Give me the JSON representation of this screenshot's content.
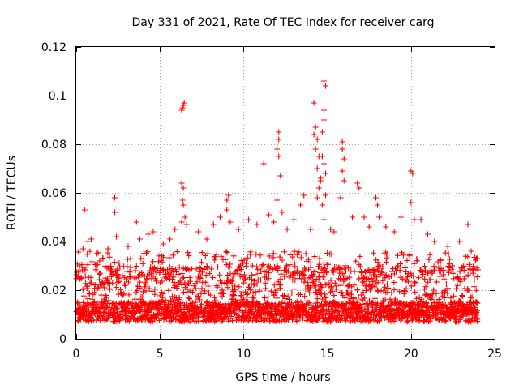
{
  "chart_data": {
    "type": "scatter",
    "title": "Day 331 of 2021, Rate Of TEC Index for receiver carg",
    "xlabel": "GPS time / hours",
    "ylabel": "ROTI / TECUs",
    "xlim": [
      0,
      25
    ],
    "ylim": [
      0,
      0.12
    ],
    "xticks": [
      0,
      5,
      10,
      15,
      20,
      25
    ],
    "yticks": [
      0,
      0.02,
      0.04,
      0.06,
      0.08,
      0.1,
      0.12
    ],
    "xtick_labels": [
      "0",
      "5",
      "10",
      "15",
      "20",
      "25"
    ],
    "ytick_labels": [
      "0",
      "0.02",
      "0.04",
      "0.06",
      "0.08",
      "0.1",
      "0.12"
    ],
    "grid": true,
    "marker": "plus",
    "color": "#ff0000",
    "data_range": [
      0,
      24
    ],
    "baseline": {
      "min": 0.004,
      "typical": 0.012,
      "max": 0.03
    },
    "series": [
      {
        "name": "ROTI",
        "points": [
          [
            0.2,
            0.03
          ],
          [
            0.4,
            0.037
          ],
          [
            0.5,
            0.053
          ],
          [
            0.7,
            0.04
          ],
          [
            0.9,
            0.041
          ],
          [
            1.2,
            0.035
          ],
          [
            1.6,
            0.033
          ],
          [
            1.9,
            0.037
          ],
          [
            2.3,
            0.058
          ],
          [
            2.3,
            0.052
          ],
          [
            2.4,
            0.042
          ],
          [
            3.1,
            0.038
          ],
          [
            3.6,
            0.048
          ],
          [
            3.8,
            0.041
          ],
          [
            4.3,
            0.043
          ],
          [
            4.6,
            0.044
          ],
          [
            5.2,
            0.039
          ],
          [
            5.6,
            0.041
          ],
          [
            5.9,
            0.045
          ],
          [
            6.3,
            0.094
          ],
          [
            6.35,
            0.095
          ],
          [
            6.4,
            0.096
          ],
          [
            6.45,
            0.097
          ],
          [
            6.3,
            0.064
          ],
          [
            6.4,
            0.062
          ],
          [
            6.35,
            0.057
          ],
          [
            6.4,
            0.055
          ],
          [
            6.3,
            0.048
          ],
          [
            6.5,
            0.05
          ],
          [
            6.6,
            0.047
          ],
          [
            7.3,
            0.044
          ],
          [
            7.8,
            0.041
          ],
          [
            8.2,
            0.047
          ],
          [
            8.6,
            0.05
          ],
          [
            9.0,
            0.057
          ],
          [
            9.1,
            0.059
          ],
          [
            9.0,
            0.053
          ],
          [
            9.2,
            0.048
          ],
          [
            9.7,
            0.045
          ],
          [
            10.3,
            0.049
          ],
          [
            10.8,
            0.047
          ],
          [
            11.2,
            0.072
          ],
          [
            11.5,
            0.051
          ],
          [
            11.8,
            0.048
          ],
          [
            12.0,
            0.057
          ],
          [
            12.1,
            0.085
          ],
          [
            12.1,
            0.082
          ],
          [
            12.0,
            0.078
          ],
          [
            12.1,
            0.075
          ],
          [
            12.2,
            0.067
          ],
          [
            12.3,
            0.052
          ],
          [
            12.6,
            0.045
          ],
          [
            13.0,
            0.049
          ],
          [
            13.4,
            0.055
          ],
          [
            13.6,
            0.059
          ],
          [
            14.0,
            0.045
          ],
          [
            14.2,
            0.097
          ],
          [
            14.3,
            0.087
          ],
          [
            14.2,
            0.084
          ],
          [
            14.4,
            0.082
          ],
          [
            14.3,
            0.078
          ],
          [
            14.5,
            0.075
          ],
          [
            14.4,
            0.07
          ],
          [
            14.6,
            0.065
          ],
          [
            14.5,
            0.062
          ],
          [
            14.4,
            0.058
          ],
          [
            14.8,
            0.106
          ],
          [
            14.9,
            0.104
          ],
          [
            14.8,
            0.094
          ],
          [
            14.8,
            0.09
          ],
          [
            14.7,
            0.085
          ],
          [
            14.7,
            0.075
          ],
          [
            14.8,
            0.072
          ],
          [
            14.9,
            0.068
          ],
          [
            14.6,
            0.066
          ],
          [
            14.9,
            0.059
          ],
          [
            14.7,
            0.055
          ],
          [
            14.8,
            0.049
          ],
          [
            15.2,
            0.045
          ],
          [
            15.4,
            0.044
          ],
          [
            15.9,
            0.081
          ],
          [
            15.9,
            0.078
          ],
          [
            16.0,
            0.074
          ],
          [
            15.9,
            0.069
          ],
          [
            16.0,
            0.065
          ],
          [
            15.8,
            0.058
          ],
          [
            16.5,
            0.05
          ],
          [
            16.8,
            0.064
          ],
          [
            16.9,
            0.062
          ],
          [
            17.2,
            0.05
          ],
          [
            17.5,
            0.046
          ],
          [
            17.9,
            0.058
          ],
          [
            18.0,
            0.055
          ],
          [
            18.1,
            0.05
          ],
          [
            18.5,
            0.046
          ],
          [
            19.0,
            0.044
          ],
          [
            19.4,
            0.05
          ],
          [
            20.0,
            0.069
          ],
          [
            20.1,
            0.068
          ],
          [
            20.0,
            0.056
          ],
          [
            20.2,
            0.049
          ],
          [
            20.6,
            0.049
          ],
          [
            21.0,
            0.043
          ],
          [
            21.4,
            0.04
          ],
          [
            22.2,
            0.038
          ],
          [
            22.9,
            0.04
          ],
          [
            23.4,
            0.047
          ],
          [
            23.6,
            0.036
          ],
          [
            23.9,
            0.033
          ]
        ]
      }
    ]
  }
}
